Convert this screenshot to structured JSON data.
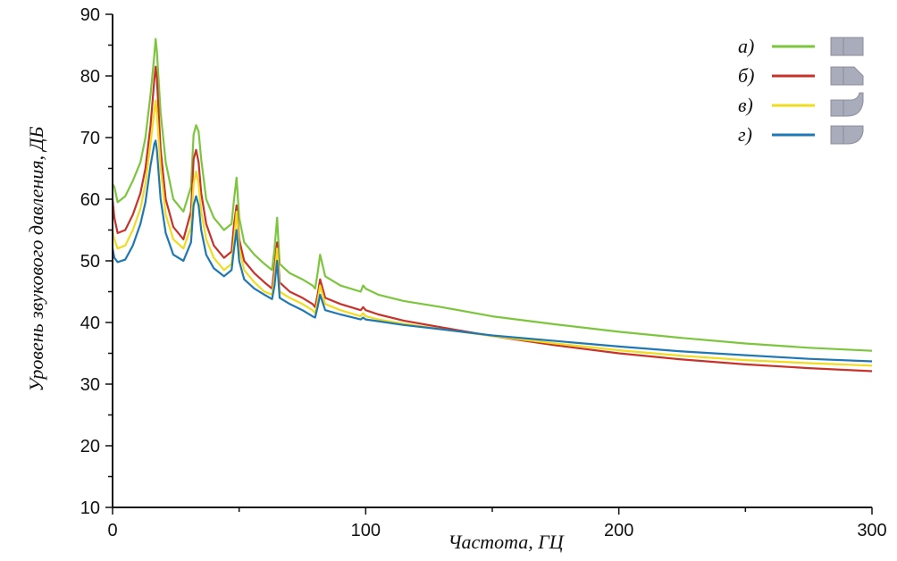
{
  "chart_data": {
    "type": "line",
    "title": "",
    "xlabel": "Частота, ГЦ",
    "ylabel": "Уровень звукового давления, ДБ",
    "xlim": [
      0,
      300
    ],
    "ylim": [
      10,
      90
    ],
    "xticks": [
      0,
      100,
      200,
      300
    ],
    "yticks": [
      10,
      20,
      30,
      40,
      50,
      60,
      70,
      80,
      90
    ],
    "grid": false,
    "legend_position": "top-right",
    "series": [
      {
        "name": "а)",
        "color": "#7cc63e",
        "icon": "straight-pipe-icon",
        "x": [
          0,
          0.7,
          2,
          5,
          8,
          11,
          13,
          15,
          16.5,
          17,
          17.5,
          19,
          21,
          24,
          28,
          31,
          32,
          33,
          34,
          35,
          37,
          40,
          44,
          47,
          48,
          49,
          50,
          52,
          56,
          60,
          63,
          64,
          65,
          66,
          70,
          75,
          79,
          80,
          81,
          82,
          84,
          90,
          98,
          99,
          100,
          105,
          115,
          130,
          150,
          175,
          200,
          225,
          250,
          275,
          300
        ],
        "y": [
          62.5,
          62,
          59.5,
          60.5,
          63,
          66,
          70,
          77,
          83.5,
          86,
          84,
          74,
          66,
          60,
          58,
          62,
          70.5,
          72,
          71,
          66.5,
          60,
          57,
          55,
          56,
          60,
          63.5,
          57,
          53,
          51,
          49.5,
          48.5,
          52,
          57,
          49.5,
          48,
          47,
          46,
          45.5,
          48,
          51,
          47.5,
          46,
          45,
          46,
          45.5,
          44.5,
          43.5,
          42.5,
          41,
          39.7,
          38.5,
          37.5,
          36.6,
          35.9,
          35.4
        ]
      },
      {
        "name": "б)",
        "color": "#c8322a",
        "icon": "chamfered-pipe-icon",
        "x": [
          0,
          0.7,
          2,
          5,
          8,
          11,
          13,
          15,
          16.5,
          17,
          17.5,
          19,
          21,
          24,
          28,
          31,
          32,
          33,
          34,
          35,
          37,
          40,
          44,
          47,
          48,
          49,
          50,
          52,
          56,
          60,
          63,
          64,
          65,
          66,
          70,
          75,
          79,
          80,
          81,
          82,
          84,
          90,
          98,
          99,
          100,
          105,
          115,
          130,
          150,
          175,
          200,
          225,
          250,
          275,
          300
        ],
        "y": [
          60,
          57,
          54.5,
          55,
          57.5,
          61,
          65,
          72,
          79.5,
          81.5,
          79.5,
          68,
          60,
          55.5,
          53.5,
          58,
          66.5,
          68,
          66,
          61,
          56,
          52.5,
          50.5,
          51.5,
          56,
          59,
          53.5,
          50,
          48,
          46.5,
          45.5,
          49,
          53,
          46.5,
          45,
          44,
          43,
          42.5,
          44.5,
          47,
          44,
          43,
          42,
          42.5,
          42,
          41.3,
          40.3,
          39.2,
          37.8,
          36.3,
          35,
          34,
          33.2,
          32.6,
          32.1
        ]
      },
      {
        "name": "в)",
        "color": "#f0dc1e",
        "icon": "elbow-pipe-icon",
        "x": [
          0,
          0.7,
          2,
          5,
          8,
          11,
          13,
          15,
          16.5,
          17,
          17.5,
          19,
          21,
          24,
          28,
          31,
          32,
          33,
          34,
          35,
          37,
          40,
          44,
          47,
          48,
          49,
          50,
          52,
          56,
          60,
          63,
          64,
          65,
          66,
          70,
          75,
          79,
          80,
          81,
          82,
          84,
          90,
          98,
          99,
          100,
          105,
          115,
          130,
          150,
          175,
          200,
          225,
          250,
          275,
          300
        ],
        "y": [
          55,
          53.5,
          52,
          52.5,
          55,
          58.5,
          62.5,
          69,
          74.5,
          76,
          74,
          65,
          57.5,
          53.5,
          52,
          55.5,
          62.5,
          64.5,
          62.5,
          58,
          53.5,
          50.5,
          48.5,
          49.5,
          53.5,
          58,
          52,
          48.5,
          46.5,
          45,
          44.5,
          47.5,
          52,
          45,
          44,
          43,
          42,
          41.5,
          43.5,
          46,
          43,
          42,
          41,
          41.5,
          41,
          40.5,
          39.8,
          38.9,
          37.8,
          36.6,
          35.5,
          34.6,
          33.9,
          33.4,
          33
        ]
      },
      {
        "name": "г)",
        "color": "#1f78b4",
        "icon": "curved-pipe-icon",
        "x": [
          0,
          0.7,
          2,
          5,
          8,
          11,
          13,
          15,
          16.5,
          17,
          17.5,
          19,
          21,
          24,
          28,
          31,
          32,
          33,
          34,
          35,
          37,
          40,
          44,
          47,
          48,
          49,
          50,
          52,
          56,
          60,
          63,
          64,
          65,
          66,
          70,
          75,
          79,
          80,
          81,
          82,
          84,
          90,
          98,
          99,
          100,
          105,
          115,
          130,
          150,
          175,
          200,
          225,
          250,
          275,
          300
        ],
        "y": [
          52,
          50.5,
          49.8,
          50.2,
          52.5,
          56,
          59.5,
          65.5,
          69,
          69.5,
          68,
          60,
          54.5,
          51,
          50,
          53,
          59,
          60.5,
          59,
          55,
          51,
          48.8,
          47.5,
          48.5,
          52,
          55,
          50,
          47,
          45.5,
          44.5,
          43.8,
          46,
          50,
          44,
          43,
          42,
          41,
          40.8,
          42.5,
          44.5,
          42,
          41.3,
          40.5,
          40.8,
          40.5,
          40.2,
          39.6,
          38.9,
          37.9,
          37,
          36.1,
          35.3,
          34.7,
          34.1,
          33.7
        ]
      }
    ]
  }
}
